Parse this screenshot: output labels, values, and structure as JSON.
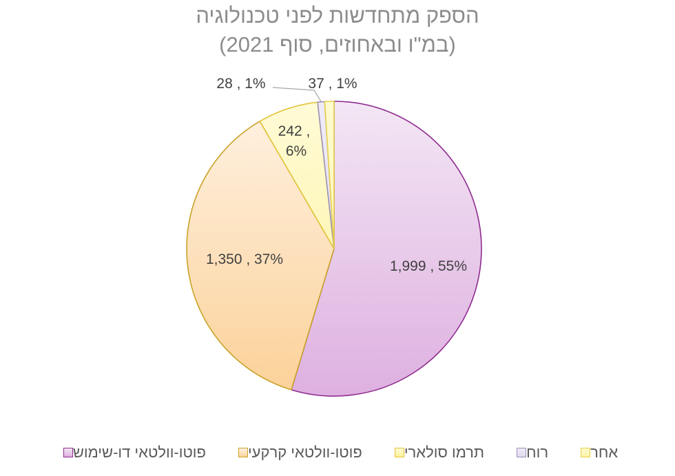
{
  "chart_data": {
    "type": "pie",
    "title_line1": "הספק מתחדשות לפני טכנולוגיה",
    "title_line2": "(במ\"ו ובאחוזים, סוף 2021)",
    "slices": [
      {
        "name": "פוטו-וולטאי דו-שימוש",
        "value": 1999,
        "percent": 55,
        "label": "1,999 , 55%",
        "fill_top": "#f3e6f4",
        "fill_bottom": "#deb0e0",
        "stroke": "#8e2b8f"
      },
      {
        "name": "פוטו-וולטאי קרקעי",
        "value": 1350,
        "percent": 37,
        "label": "1,350 , 37%",
        "fill_top": "#fff2e3",
        "fill_bottom": "#fbd198",
        "stroke": "#c9a227"
      },
      {
        "name": "תרמו סולארי",
        "value": 242,
        "percent": 6,
        "label": "242 , 6%",
        "label_line1": "242 ,",
        "label_line2": "6%",
        "fill_top": "#fffbd6",
        "fill_bottom": "#fdf19a",
        "stroke": "#e2c43a"
      },
      {
        "name": "רוח",
        "value": 28,
        "percent": 1,
        "label": "28 , 1%",
        "fill_top": "#efebf6",
        "fill_bottom": "#e2daef",
        "stroke": "#9a92b6"
      },
      {
        "name": "אחר",
        "value": 37,
        "percent": 1,
        "label": "37 , 1%",
        "fill_top": "#fffbd0",
        "fill_bottom": "#fdf4a8",
        "stroke": "#e7d04a"
      }
    ]
  }
}
